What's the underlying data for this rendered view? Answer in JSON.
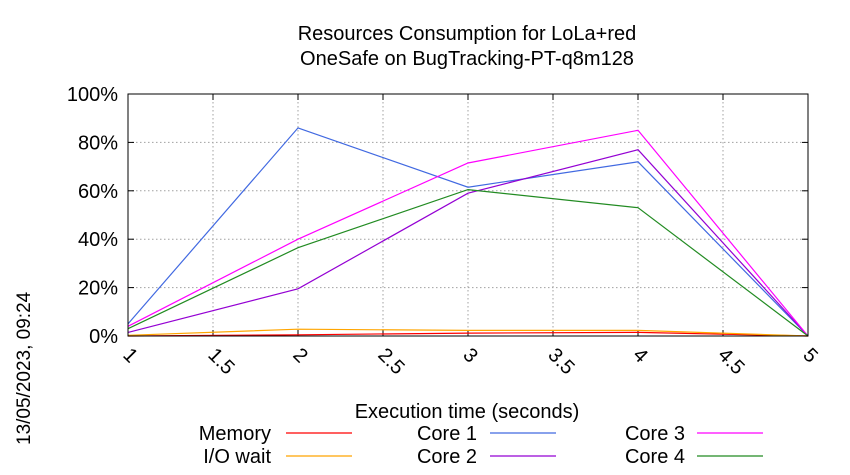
{
  "chart_data": {
    "type": "line",
    "title": "Resources Consumption for LoLa+red",
    "subtitle": "OneSafe on BugTracking-PT-q8m128",
    "xlabel": "Execution time (seconds)",
    "ylabel": "",
    "xlim": [
      1,
      5
    ],
    "ylim": [
      0,
      100
    ],
    "x_ticks": [
      "1",
      "1.5",
      "2",
      "2.5",
      "3",
      "3.5",
      "4",
      "4.5",
      "5"
    ],
    "y_ticks": [
      "0%",
      "20%",
      "40%",
      "60%",
      "80%",
      "100%"
    ],
    "grid": true,
    "legend_position": "bottom",
    "x": [
      1,
      2,
      3,
      4,
      5
    ],
    "series": [
      {
        "name": "Memory",
        "color": "#ff0000",
        "values": [
          0,
          0.5,
          1.2,
          1.5,
          0
        ]
      },
      {
        "name": "I/O wait",
        "color": "#ffa500",
        "values": [
          0.3,
          2.8,
          2.3,
          2.3,
          0
        ]
      },
      {
        "name": "Core 1",
        "color": "#4169e1",
        "values": [
          5,
          86,
          61.5,
          72,
          0
        ]
      },
      {
        "name": "Core 2",
        "color": "#9400d3",
        "values": [
          1.5,
          19.5,
          59,
          77,
          0
        ]
      },
      {
        "name": "Core 3",
        "color": "#ff00ff",
        "values": [
          4,
          40,
          71.5,
          85,
          0
        ]
      },
      {
        "name": "Core 4",
        "color": "#228b22",
        "values": [
          3,
          36.5,
          60.5,
          53,
          0
        ]
      }
    ]
  },
  "timestamp": "13/05/2023, 09:24"
}
